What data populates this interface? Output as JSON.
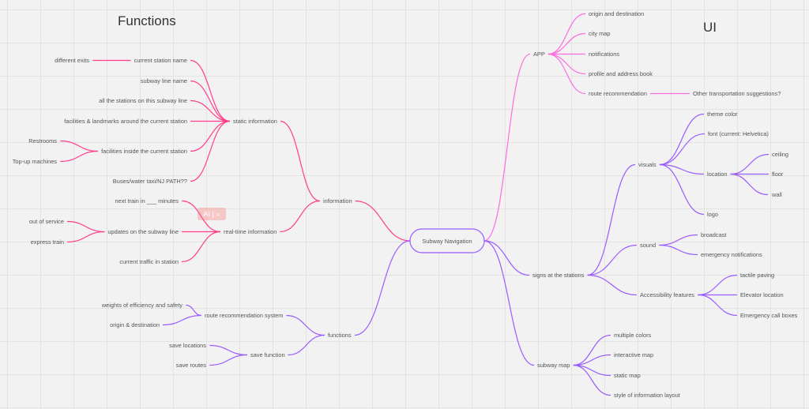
{
  "titles": {
    "left": "Functions",
    "right": "UI"
  },
  "colors": {
    "information": "#ff3d8b",
    "app": "#ff6be0",
    "purple": "#9a5cff",
    "root_border": "#9a5cff",
    "text": "#555555"
  },
  "ai_badge": {
    "label": "AI | ⌕"
  },
  "root": {
    "label": "Subway Navigation"
  },
  "nodes": [
    {
      "id": "information",
      "label": "information",
      "parent": "root"
    },
    {
      "id": "static",
      "label": "static information",
      "parent": "information"
    },
    {
      "id": "csn",
      "label": "current station name",
      "parent": "static"
    },
    {
      "id": "exits",
      "label": "different exits",
      "parent": "csn"
    },
    {
      "id": "sln",
      "label": "subway line name",
      "parent": "static"
    },
    {
      "id": "allst",
      "label": "all the stations on this subway line",
      "parent": "static"
    },
    {
      "id": "facland",
      "label": "facilities & landmarks around the current station",
      "parent": "static"
    },
    {
      "id": "facin",
      "label": "facilities inside the current station",
      "parent": "static"
    },
    {
      "id": "rest",
      "label": "Restrooms",
      "parent": "facin"
    },
    {
      "id": "topup",
      "label": "Top-up machines",
      "parent": "facin"
    },
    {
      "id": "buses",
      "label": "Buses/water taxi/NJ PATH??",
      "parent": "static"
    },
    {
      "id": "realtime",
      "label": "real-time information",
      "parent": "information"
    },
    {
      "id": "next",
      "label": "next train in ___ minutes",
      "parent": "realtime"
    },
    {
      "id": "updates",
      "label": "updates on the subway line",
      "parent": "realtime"
    },
    {
      "id": "oos",
      "label": "out of service",
      "parent": "updates"
    },
    {
      "id": "express",
      "label": "express train",
      "parent": "updates"
    },
    {
      "id": "traffic",
      "label": "current traffic in station",
      "parent": "realtime"
    },
    {
      "id": "functions",
      "label": "functions",
      "parent": "root"
    },
    {
      "id": "rrs",
      "label": "route recommendation system",
      "parent": "functions"
    },
    {
      "id": "weights",
      "label": "weights of efficiency and safety",
      "parent": "rrs"
    },
    {
      "id": "od",
      "label": "origin & destination",
      "parent": "rrs"
    },
    {
      "id": "save",
      "label": "save function",
      "parent": "functions"
    },
    {
      "id": "saveloc",
      "label": "save locations",
      "parent": "save"
    },
    {
      "id": "saveroutes",
      "label": "save routes",
      "parent": "save"
    },
    {
      "id": "app",
      "label": "APP",
      "parent": "root"
    },
    {
      "id": "aod",
      "label": "origin and destination",
      "parent": "app"
    },
    {
      "id": "citymap",
      "label": "city map",
      "parent": "app"
    },
    {
      "id": "notif",
      "label": "notifications",
      "parent": "app"
    },
    {
      "id": "profile",
      "label": "profile and address book",
      "parent": "app"
    },
    {
      "id": "routerec",
      "label": "route recommendation",
      "parent": "app"
    },
    {
      "id": "othertrans",
      "label": "Other transportation suggestions?",
      "parent": "routerec"
    },
    {
      "id": "signs",
      "label": "signs at the stations",
      "parent": "root"
    },
    {
      "id": "visuals",
      "label": "visuals",
      "parent": "signs"
    },
    {
      "id": "theme",
      "label": "theme color",
      "parent": "visuals"
    },
    {
      "id": "font",
      "label": "font  (current: Helvetica)",
      "parent": "visuals"
    },
    {
      "id": "location",
      "label": "location",
      "parent": "visuals"
    },
    {
      "id": "ceiling",
      "label": "ceiling",
      "parent": "location"
    },
    {
      "id": "floor",
      "label": "floor",
      "parent": "location"
    },
    {
      "id": "wall",
      "label": "wall",
      "parent": "location"
    },
    {
      "id": "logo",
      "label": "logo",
      "parent": "visuals"
    },
    {
      "id": "sound",
      "label": "sound",
      "parent": "signs"
    },
    {
      "id": "broadcast",
      "label": "broadcast",
      "parent": "sound"
    },
    {
      "id": "emnotif",
      "label": "emergency notifications",
      "parent": "sound"
    },
    {
      "id": "access",
      "label": "Accessibility features",
      "parent": "signs"
    },
    {
      "id": "tactile",
      "label": "tactile paving",
      "parent": "access"
    },
    {
      "id": "elevator",
      "label": "Elevator location",
      "parent": "access"
    },
    {
      "id": "callbox",
      "label": "Emergency call boxes",
      "parent": "access"
    },
    {
      "id": "submap",
      "label": "subway map",
      "parent": "root"
    },
    {
      "id": "multi",
      "label": "multiple colors",
      "parent": "submap"
    },
    {
      "id": "interactive",
      "label": "interactive map",
      "parent": "submap"
    },
    {
      "id": "staticmap",
      "label": "static map",
      "parent": "submap"
    },
    {
      "id": "style",
      "label": "style of information layout",
      "parent": "submap"
    }
  ]
}
